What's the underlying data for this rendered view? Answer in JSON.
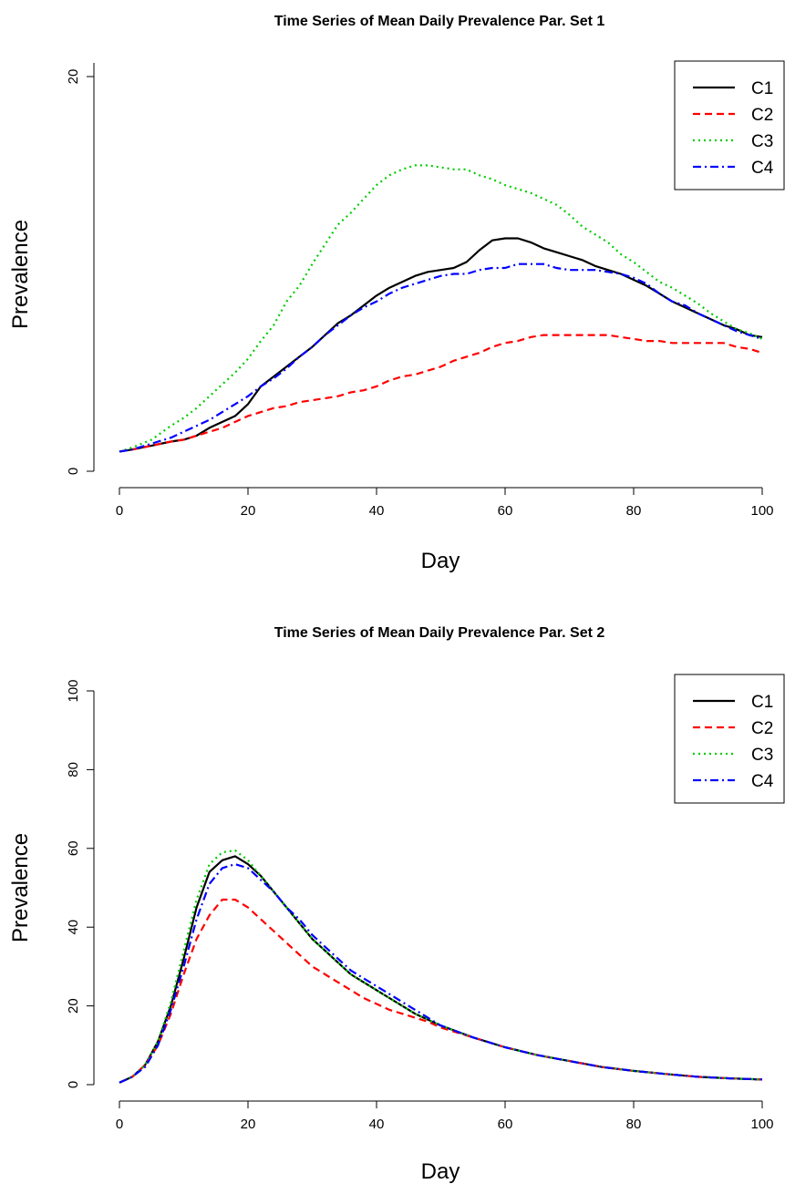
{
  "chart_data": [
    {
      "type": "line",
      "title": "Time Series of Mean Daily Prevalence Par. Set 1",
      "xlabel": "Day",
      "ylabel": "Prevalence",
      "xlim": [
        0,
        100
      ],
      "ylim": [
        0,
        20
      ],
      "x_ticks": [
        "0",
        "20",
        "40",
        "60",
        "80",
        "100"
      ],
      "y_ticks": [
        "0",
        "20"
      ],
      "legend_position": "top-right",
      "grid": false,
      "series": [
        {
          "name": "C1",
          "color": "#000000",
          "style": "solid",
          "x": [
            0,
            2,
            5,
            8,
            10,
            12,
            14,
            16,
            18,
            20,
            22,
            24,
            26,
            28,
            30,
            32,
            34,
            36,
            38,
            40,
            42,
            44,
            46,
            48,
            50,
            52,
            54,
            56,
            58,
            60,
            62,
            64,
            66,
            68,
            70,
            72,
            74,
            76,
            78,
            80,
            82,
            84,
            86,
            88,
            90,
            92,
            94,
            96,
            98,
            100
          ],
          "y": [
            1.0,
            1.1,
            1.3,
            1.5,
            1.6,
            1.8,
            2.2,
            2.5,
            2.8,
            3.4,
            4.3,
            4.8,
            5.3,
            5.8,
            6.3,
            6.9,
            7.5,
            7.9,
            8.4,
            8.9,
            9.3,
            9.6,
            9.9,
            10.1,
            10.2,
            10.3,
            10.6,
            11.2,
            11.7,
            11.8,
            11.8,
            11.6,
            11.3,
            11.1,
            10.9,
            10.7,
            10.4,
            10.2,
            10.0,
            9.7,
            9.4,
            9.0,
            8.6,
            8.3,
            8.0,
            7.7,
            7.4,
            7.2,
            6.9,
            6.8
          ]
        },
        {
          "name": "C2",
          "color": "#ff0000",
          "style": "dashed",
          "x": [
            0,
            2,
            5,
            8,
            10,
            12,
            14,
            16,
            18,
            20,
            22,
            24,
            26,
            28,
            30,
            32,
            34,
            36,
            38,
            40,
            42,
            44,
            46,
            48,
            50,
            52,
            54,
            56,
            58,
            60,
            62,
            64,
            66,
            68,
            70,
            72,
            74,
            76,
            78,
            80,
            82,
            84,
            86,
            88,
            90,
            92,
            94,
            96,
            98,
            100
          ],
          "y": [
            1.0,
            1.1,
            1.3,
            1.5,
            1.6,
            1.8,
            2.0,
            2.2,
            2.5,
            2.8,
            3.0,
            3.2,
            3.3,
            3.5,
            3.6,
            3.7,
            3.8,
            4.0,
            4.1,
            4.3,
            4.6,
            4.8,
            4.9,
            5.1,
            5.3,
            5.6,
            5.8,
            6.0,
            6.3,
            6.5,
            6.6,
            6.8,
            6.9,
            6.9,
            6.9,
            6.9,
            6.9,
            6.9,
            6.8,
            6.7,
            6.6,
            6.6,
            6.5,
            6.5,
            6.5,
            6.5,
            6.5,
            6.3,
            6.2,
            6.0
          ]
        },
        {
          "name": "C3",
          "color": "#00cc00",
          "style": "dotted",
          "x": [
            0,
            2,
            5,
            8,
            10,
            12,
            14,
            16,
            18,
            20,
            22,
            24,
            26,
            28,
            30,
            32,
            34,
            36,
            38,
            40,
            42,
            44,
            46,
            48,
            50,
            52,
            54,
            56,
            58,
            60,
            62,
            64,
            66,
            68,
            70,
            72,
            74,
            76,
            78,
            80,
            82,
            84,
            86,
            88,
            90,
            92,
            94,
            96,
            98,
            100
          ],
          "y": [
            1.0,
            1.2,
            1.6,
            2.3,
            2.7,
            3.2,
            3.8,
            4.4,
            5.0,
            5.7,
            6.6,
            7.4,
            8.6,
            9.4,
            10.5,
            11.5,
            12.5,
            13.1,
            13.8,
            14.5,
            15.0,
            15.3,
            15.5,
            15.5,
            15.4,
            15.3,
            15.3,
            15.0,
            14.8,
            14.5,
            14.3,
            14.1,
            13.8,
            13.5,
            13.0,
            12.4,
            12.0,
            11.6,
            11.0,
            10.6,
            10.1,
            9.6,
            9.3,
            8.9,
            8.5,
            8.0,
            7.6,
            7.2,
            7.0,
            6.7
          ]
        },
        {
          "name": "C4",
          "color": "#0000ff",
          "style": "dashdot",
          "x": [
            0,
            2,
            5,
            8,
            10,
            12,
            14,
            16,
            18,
            20,
            22,
            24,
            26,
            28,
            30,
            32,
            34,
            36,
            38,
            40,
            42,
            44,
            46,
            48,
            50,
            52,
            54,
            56,
            58,
            60,
            62,
            64,
            66,
            68,
            70,
            72,
            74,
            76,
            78,
            80,
            82,
            84,
            86,
            88,
            90,
            92,
            94,
            96,
            98,
            100
          ],
          "y": [
            1.0,
            1.1,
            1.4,
            1.7,
            2.0,
            2.3,
            2.6,
            3.0,
            3.4,
            3.8,
            4.3,
            4.7,
            5.2,
            5.8,
            6.3,
            6.9,
            7.4,
            7.9,
            8.3,
            8.6,
            9.0,
            9.3,
            9.5,
            9.7,
            9.9,
            10.0,
            10.0,
            10.2,
            10.3,
            10.3,
            10.5,
            10.5,
            10.5,
            10.3,
            10.2,
            10.2,
            10.2,
            10.1,
            10.0,
            9.8,
            9.5,
            9.0,
            8.6,
            8.4,
            8.0,
            7.7,
            7.4,
            7.1,
            6.9,
            6.7
          ]
        }
      ]
    },
    {
      "type": "line",
      "title": "Time Series of Mean Daily Prevalence Par. Set 2",
      "xlabel": "Day",
      "ylabel": "Prevalence",
      "xlim": [
        0,
        100
      ],
      "ylim": [
        0,
        100
      ],
      "x_ticks": [
        "0",
        "20",
        "40",
        "60",
        "80",
        "100"
      ],
      "y_ticks": [
        "0",
        "20",
        "40",
        "60",
        "80",
        "100"
      ],
      "legend_position": "top-right",
      "grid": false,
      "series": [
        {
          "name": "C1",
          "color": "#000000",
          "style": "solid",
          "x": [
            0,
            2,
            4,
            6,
            8,
            10,
            12,
            14,
            16,
            18,
            20,
            22,
            24,
            26,
            28,
            30,
            32,
            34,
            36,
            38,
            40,
            42,
            44,
            46,
            48,
            50,
            55,
            60,
            65,
            70,
            75,
            80,
            85,
            90,
            95,
            100
          ],
          "y": [
            0.5,
            2,
            5,
            11,
            20,
            32,
            45,
            54,
            57,
            58,
            56,
            53,
            49,
            45,
            41,
            37,
            34,
            31,
            28,
            26,
            24,
            22,
            20,
            18,
            16.5,
            15,
            12,
            9.5,
            7.5,
            6,
            4.5,
            3.5,
            2.7,
            2,
            1.6,
            1.3
          ]
        },
        {
          "name": "C2",
          "color": "#ff0000",
          "style": "dashed",
          "x": [
            0,
            2,
            4,
            6,
            8,
            10,
            12,
            14,
            16,
            18,
            20,
            22,
            24,
            26,
            28,
            30,
            32,
            34,
            36,
            38,
            40,
            42,
            44,
            46,
            48,
            50,
            55,
            60,
            65,
            70,
            75,
            80,
            85,
            90,
            95,
            100
          ],
          "y": [
            0.5,
            2,
            5,
            10,
            18,
            28,
            37,
            43,
            47,
            47,
            45,
            42,
            39,
            36,
            33,
            30,
            28,
            26,
            24,
            22,
            20.5,
            19,
            18,
            17,
            16,
            14.5,
            12,
            9.5,
            7.5,
            6,
            4.5,
            3.5,
            2.7,
            2,
            1.6,
            1.3
          ]
        },
        {
          "name": "C3",
          "color": "#00cc00",
          "style": "dotted",
          "x": [
            0,
            2,
            4,
            6,
            8,
            10,
            12,
            14,
            16,
            18,
            20,
            22,
            24,
            26,
            28,
            30,
            32,
            34,
            36,
            38,
            40,
            42,
            44,
            46,
            48,
            50,
            55,
            60,
            65,
            70,
            75,
            80,
            85,
            90,
            95,
            100
          ],
          "y": [
            0.5,
            2,
            5,
            11,
            21,
            34,
            47,
            56,
            59,
            59.5,
            57,
            53,
            49,
            45,
            41,
            37,
            34,
            31,
            28,
            26,
            24,
            22,
            20,
            18,
            16.5,
            15,
            12,
            9.5,
            7.5,
            6,
            4.5,
            3.5,
            2.7,
            2,
            1.6,
            1.3
          ]
        },
        {
          "name": "C4",
          "color": "#0000ff",
          "style": "dashdot",
          "x": [
            0,
            2,
            4,
            6,
            8,
            10,
            12,
            14,
            16,
            18,
            20,
            22,
            24,
            26,
            28,
            30,
            32,
            34,
            36,
            38,
            40,
            42,
            44,
            46,
            48,
            50,
            55,
            60,
            65,
            70,
            75,
            80,
            85,
            90,
            95,
            100
          ],
          "y": [
            0.5,
            2,
            4.5,
            10,
            19,
            30,
            42,
            51,
            55,
            56,
            55,
            52,
            49,
            45,
            42,
            38,
            35,
            32,
            29,
            27,
            25,
            23,
            21,
            19,
            17,
            15,
            12,
            9.5,
            7.5,
            6,
            4.5,
            3.5,
            2.7,
            2,
            1.6,
            1.3
          ]
        }
      ]
    }
  ]
}
